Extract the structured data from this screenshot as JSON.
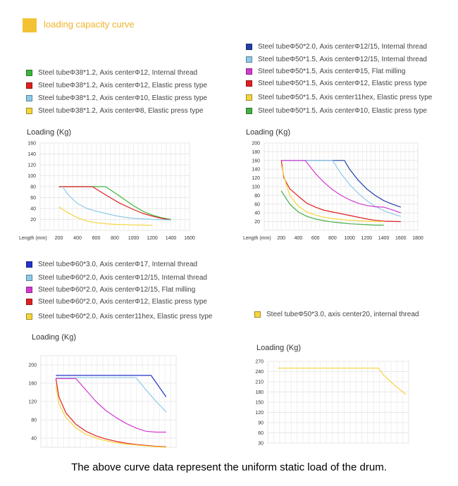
{
  "header": {
    "title": "loading capacity curve",
    "accent": "#f3c233"
  },
  "footer": "The above curve data represent the uniform static load of the drum.",
  "chart_data": [
    {
      "type": "line",
      "ylabel": "Loading (Kg)",
      "xlabel": "Length (mm)",
      "xlim": [
        0,
        1600
      ],
      "ylim": [
        0,
        160
      ],
      "xticks": [
        200,
        400,
        600,
        800,
        1000,
        1200,
        1400,
        1600
      ],
      "yticks": [
        20,
        40,
        60,
        80,
        100,
        120,
        140,
        160
      ],
      "grid": true,
      "series": [
        {
          "name": "Steel tubeΦ38*1.2,  Axis centerΦ12,    Internal thread",
          "color": "#3db53d",
          "points": [
            [
              200,
              80
            ],
            [
              700,
              80
            ],
            [
              850,
              63
            ],
            [
              1000,
              45
            ],
            [
              1100,
              35
            ],
            [
              1200,
              28
            ],
            [
              1300,
              23
            ],
            [
              1400,
              20
            ]
          ]
        },
        {
          "name": "Steel tubeΦ38*1.2,  Axis centerΦ12,  Elastic press type",
          "color": "#e02020",
          "points": [
            [
              200,
              80
            ],
            [
              560,
              80
            ],
            [
              700,
              65
            ],
            [
              850,
              50
            ],
            [
              1000,
              38
            ],
            [
              1100,
              31
            ],
            [
              1200,
              26
            ],
            [
              1300,
              22
            ],
            [
              1400,
              19
            ]
          ]
        },
        {
          "name": "Steel tubeΦ38*1.2,  Axis centerΦ10,  Elastic press type",
          "color": "#8ccbe8",
          "points": [
            [
              240,
              80
            ],
            [
              300,
              65
            ],
            [
              400,
              49
            ],
            [
              500,
              40
            ],
            [
              600,
              35
            ],
            [
              700,
              31
            ],
            [
              800,
              27
            ],
            [
              900,
              24
            ],
            [
              1000,
              22
            ],
            [
              1200,
              20
            ],
            [
              1400,
              19
            ]
          ]
        },
        {
          "name": "Steel tubeΦ38*1.2,  Axis centerΦ8,  Elastic press type",
          "color": "#f5d63d",
          "points": [
            [
              200,
              43
            ],
            [
              300,
              32
            ],
            [
              400,
              23
            ],
            [
              500,
              17
            ],
            [
              600,
              14
            ],
            [
              700,
              12
            ],
            [
              800,
              11
            ],
            [
              1000,
              10
            ],
            [
              1200,
              9
            ]
          ]
        }
      ]
    },
    {
      "type": "line",
      "ylabel": "Loading (Kg)",
      "xlabel": "Length (mm)",
      "xlim": [
        0,
        1800
      ],
      "ylim": [
        0,
        200
      ],
      "xticks": [
        200,
        400,
        600,
        800,
        1000,
        1200,
        1400,
        1600,
        1800
      ],
      "yticks": [
        20,
        40,
        60,
        80,
        100,
        120,
        140,
        160,
        180,
        200
      ],
      "grid": true,
      "series": [
        {
          "name": "Steel tubeΦ50*2.0,  Axis centerΦ12/15,    Internal thread",
          "color": "#2340a8",
          "points": [
            [
              200,
              160
            ],
            [
              940,
              160
            ],
            [
              1000,
              140
            ],
            [
              1100,
              115
            ],
            [
              1200,
              95
            ],
            [
              1300,
              80
            ],
            [
              1400,
              68
            ],
            [
              1500,
              60
            ],
            [
              1600,
              53
            ]
          ]
        },
        {
          "name": "Steel tubeΦ50*1.5,  Axis centerΦ12/15,  Internal thread",
          "color": "#8ccbe8",
          "points": [
            [
              200,
              160
            ],
            [
              800,
              160
            ],
            [
              900,
              130
            ],
            [
              1000,
              105
            ],
            [
              1100,
              85
            ],
            [
              1200,
              68
            ],
            [
              1300,
              55
            ],
            [
              1400,
              45
            ],
            [
              1500,
              38
            ],
            [
              1600,
              32
            ]
          ]
        },
        {
          "name": "Steel tubeΦ50*1.5,  Axis centerΦ15,  Flat milling",
          "color": "#d23ad2",
          "points": [
            [
              200,
              160
            ],
            [
              480,
              160
            ],
            [
              600,
              130
            ],
            [
              700,
              110
            ],
            [
              800,
              93
            ],
            [
              900,
              80
            ],
            [
              1000,
              70
            ],
            [
              1100,
              62
            ],
            [
              1200,
              57
            ],
            [
              1300,
              54
            ],
            [
              1400,
              53
            ],
            [
              1500,
              47
            ],
            [
              1600,
              40
            ]
          ]
        },
        {
          "name": "Steel tubeΦ50*1.5,  Axis centerΦ12,  Elastic press type",
          "color": "#e02020",
          "points": [
            [
              200,
              160
            ],
            [
              230,
              120
            ],
            [
              300,
              95
            ],
            [
              400,
              78
            ],
            [
              500,
              62
            ],
            [
              600,
              53
            ],
            [
              700,
              46
            ],
            [
              800,
              42
            ],
            [
              900,
              38
            ],
            [
              1000,
              34
            ],
            [
              1100,
              30
            ],
            [
              1200,
              26
            ],
            [
              1300,
              23
            ],
            [
              1400,
              21
            ],
            [
              1600,
              20
            ]
          ]
        },
        {
          "name": "Steel tubeΦ50*1.5,  Axis center11hex,  Elastic press type",
          "color": "#f5d63d",
          "points": [
            [
              200,
              150
            ],
            [
              250,
              110
            ],
            [
              300,
              80
            ],
            [
              400,
              55
            ],
            [
              500,
              42
            ],
            [
              600,
              35
            ],
            [
              700,
              30
            ],
            [
              800,
              27
            ],
            [
              900,
              25
            ],
            [
              1000,
              23
            ],
            [
              1100,
              22
            ],
            [
              1200,
              21
            ],
            [
              1400,
              20
            ]
          ]
        },
        {
          "name": "Steel tubeΦ50*1.5,  Axis centerΦ10,  Elastic press type",
          "color": "#45b045",
          "points": [
            [
              200,
              90
            ],
            [
              250,
              75
            ],
            [
              300,
              60
            ],
            [
              400,
              42
            ],
            [
              500,
              32
            ],
            [
              600,
              26
            ],
            [
              700,
              22
            ],
            [
              800,
              19
            ],
            [
              900,
              17
            ],
            [
              1000,
              15
            ],
            [
              1100,
              14
            ],
            [
              1200,
              13
            ],
            [
              1300,
              12
            ],
            [
              1400,
              12
            ]
          ]
        }
      ]
    },
    {
      "type": "line",
      "ylabel": "Loading (Kg)",
      "xlim": [
        0,
        1350
      ],
      "ylim": [
        20,
        220
      ],
      "yticks": [
        40,
        80,
        120,
        160,
        200
      ],
      "grid": true,
      "series": [
        {
          "name": "Steel tubeΦ60*3.0,  Axis centerΦ17,    Internal thread",
          "color": "#2533c8",
          "points": [
            [
              150,
              177
            ],
            [
              1100,
              177
            ],
            [
              1250,
              130
            ]
          ]
        },
        {
          "name": "Steel tubeΦ60*2.0,  Axis centerΦ12/15,  Internal thread",
          "color": "#8ccbe8",
          "points": [
            [
              150,
              172
            ],
            [
              950,
              172
            ],
            [
              1050,
              145
            ],
            [
              1150,
              120
            ],
            [
              1250,
              97
            ]
          ]
        },
        {
          "name": "Steel tubeΦ60*2.0,  Axis centerΦ12/15,  Flat milling",
          "color": "#d23ad2",
          "points": [
            [
              150,
              170
            ],
            [
              350,
              170
            ],
            [
              450,
              145
            ],
            [
              550,
              120
            ],
            [
              650,
              100
            ],
            [
              750,
              85
            ],
            [
              850,
              72
            ],
            [
              950,
              62
            ],
            [
              1050,
              55
            ],
            [
              1150,
              53
            ],
            [
              1250,
              53
            ]
          ]
        },
        {
          "name": "Steel tubeΦ60*2.0,  Axis centerΦ12,  Elastic press type",
          "color": "#e02020",
          "points": [
            [
              150,
              170
            ],
            [
              180,
              130
            ],
            [
              250,
              95
            ],
            [
              350,
              70
            ],
            [
              450,
              55
            ],
            [
              550,
              45
            ],
            [
              650,
              38
            ],
            [
              750,
              33
            ],
            [
              850,
              29
            ],
            [
              950,
              26
            ],
            [
              1050,
              24
            ],
            [
              1150,
              22
            ],
            [
              1250,
              21
            ]
          ]
        },
        {
          "name": "Steel tubeΦ60*2.0,  Axis center11hex,  Elastic press type",
          "color": "#f5d63d",
          "points": [
            [
              150,
              155
            ],
            [
              180,
              115
            ],
            [
              250,
              85
            ],
            [
              350,
              62
            ],
            [
              450,
              48
            ],
            [
              550,
              40
            ],
            [
              650,
              34
            ],
            [
              750,
              30
            ],
            [
              850,
              27
            ],
            [
              950,
              25
            ],
            [
              1050,
              23
            ],
            [
              1150,
              21
            ],
            [
              1250,
              20
            ]
          ]
        }
      ]
    },
    {
      "type": "line",
      "ylabel": "Loading (Kg)",
      "xlim": [
        0,
        1400
      ],
      "ylim": [
        30,
        270
      ],
      "yticks": [
        30,
        60,
        90,
        120,
        150,
        180,
        210,
        240,
        270
      ],
      "grid": true,
      "series": [
        {
          "name": "Steel tubeΦ50*3.0,  axis center20,  internal thread",
          "color": "#f5d63d",
          "points": [
            [
              100,
              250
            ],
            [
              1100,
              250
            ],
            [
              1150,
              230
            ],
            [
              1220,
              210
            ],
            [
              1300,
              190
            ],
            [
              1370,
              173
            ]
          ]
        }
      ]
    }
  ]
}
